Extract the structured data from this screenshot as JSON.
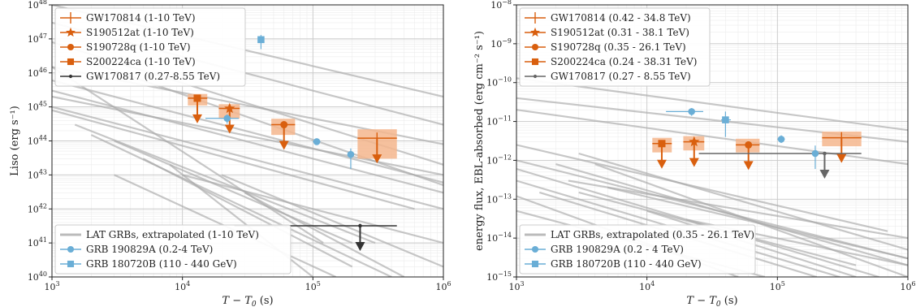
{
  "chart_data": [
    {
      "type": "scatter",
      "panel": "left",
      "xlabel": "T − T0 (s)",
      "xlabel_main": "T − T",
      "xlabel_sub": "0",
      "xlabel_unit": " (s)",
      "ylabel": "Liso (erg s⁻¹)",
      "xlim": [
        1000,
        1000000
      ],
      "ylim": [
        1e+40,
        1e+48
      ],
      "xscale": "log",
      "yscale": "log",
      "grid": true,
      "xticks": [
        {
          "v": 1000,
          "b": "10",
          "e": "3"
        },
        {
          "v": 10000,
          "b": "10",
          "e": "4"
        },
        {
          "v": 100000,
          "b": "10",
          "e": "5"
        },
        {
          "v": 1000000,
          "b": "10",
          "e": "6"
        }
      ],
      "yticks": [
        {
          "v": 1e+40,
          "b": "10",
          "e": "40"
        },
        {
          "v": 1e+41,
          "b": "10",
          "e": "41"
        },
        {
          "v": 1e+42,
          "b": "10",
          "e": "42"
        },
        {
          "v": 1e+43,
          "b": "10",
          "e": "43"
        },
        {
          "v": 1e+44,
          "b": "10",
          "e": "44"
        },
        {
          "v": 1e+45,
          "b": "10",
          "e": "45"
        },
        {
          "v": 1e+46,
          "b": "10",
          "e": "46"
        },
        {
          "v": 1e+47,
          "b": "10",
          "e": "47"
        },
        {
          "v": 1e+48,
          "b": "10",
          "e": "48"
        }
      ],
      "legend_top": [
        {
          "label": "GW170814 (1-10 TeV)",
          "marker": "vline",
          "color": "#d95f0e"
        },
        {
          "label": "S190512at (1-10 TeV)",
          "marker": "star",
          "color": "#d95f0e"
        },
        {
          "label": "S190728q (1-10 TeV)",
          "marker": "circle",
          "color": "#d95f0e"
        },
        {
          "label": "S200224ca (1-10 TeV)",
          "marker": "square",
          "color": "#d95f0e"
        },
        {
          "label": "GW170817 (0.27-8.55 TeV)",
          "marker": "dot",
          "color": "#333333"
        }
      ],
      "legend_bottom": [
        {
          "label": "LAT GRBs, extrapolated (1-10 TeV)",
          "marker": "band",
          "color": "#bbbbbb"
        },
        {
          "label": "GRB 190829A (0.2-4 TeV)",
          "marker": "circle",
          "color": "#6aaed6"
        },
        {
          "label": "GRB 180720B (110 - 440 GeV)",
          "marker": "square",
          "color": "#6aaed6"
        }
      ],
      "upper_limits": [
        {
          "name": "S200224ca",
          "marker": "square",
          "x": 13000,
          "x_lo": 11000,
          "x_hi": 15500,
          "y": 1.8e+45,
          "y_lo": 1.1e+45,
          "y_hi": 2.4e+45,
          "color": "#d95f0e"
        },
        {
          "name": "S190512at",
          "marker": "star",
          "x": 23000,
          "x_lo": 19000,
          "x_hi": 27500,
          "y": 9e+44,
          "y_lo": 4.5e+44,
          "y_hi": 1.2e+45,
          "color": "#d95f0e"
        },
        {
          "name": "S190728q",
          "marker": "circle",
          "x": 60000,
          "x_lo": 48000,
          "x_hi": 73000,
          "y": 3e+44,
          "y_lo": 1.5e+44,
          "y_hi": 4.5e+44,
          "color": "#d95f0e"
        },
        {
          "name": "GW170814",
          "marker": "vline",
          "x": 310000,
          "x_lo": 220000,
          "x_hi": 440000,
          "y": 1.2e+44,
          "y_lo": 3e+43,
          "y_hi": 2.2e+44,
          "color": "#d95f0e"
        },
        {
          "name": "GW170817",
          "marker": "dot",
          "x": 230000,
          "x_lo": 25000,
          "x_hi": 440000,
          "y": 3.2e+41,
          "color": "#333333"
        }
      ],
      "points": [
        {
          "name": "GRB 180720B",
          "marker": "square",
          "x": 40000,
          "xerr": 0.05,
          "y": 9.5e+46,
          "y_lo": 5e+46,
          "y_hi": 1.3e+47,
          "color": "#6aaed6"
        },
        {
          "name": "GRB 190829A",
          "marker": "circle",
          "x": 22000,
          "x_lo": 15000,
          "x_hi": 27000,
          "y": 4.6e+44,
          "y_lo": 3.2e+44,
          "y_hi": 6e+44,
          "color": "#6aaed6"
        },
        {
          "name": "GRB 190829A",
          "marker": "circle",
          "x": 107000,
          "x_lo": 100000,
          "x_hi": 114000,
          "y": 9.5e+43,
          "y_lo": 8e+43,
          "y_hi": 1.1e+44,
          "color": "#6aaed6"
        },
        {
          "name": "GRB 190829A",
          "marker": "circle",
          "x": 195000,
          "x_lo": 185000,
          "x_hi": 205000,
          "y": 4e+43,
          "y_lo": 1.5e+43,
          "y_hi": 6e+43,
          "color": "#6aaed6"
        }
      ],
      "lat_lines": [
        {
          "p": [
            [
              1000,
              1e+48
            ],
            [
              1000000,
              2e+45
            ]
          ]
        },
        {
          "p": [
            [
              1000,
              3e+47
            ],
            [
              1000000,
              3e+44
            ]
          ]
        },
        {
          "p": [
            [
              1000,
              8e+46
            ],
            [
              1000000,
              2e+43
            ]
          ]
        },
        {
          "p": [
            [
              1000,
              1.5e+46
            ],
            [
              1000000,
              8e+43
            ]
          ]
        },
        {
          "p": [
            [
              1000,
              6e+45
            ],
            [
              1000000,
              6e+42
            ]
          ]
        },
        {
          "p": [
            [
              1000,
              3e+45
            ],
            [
              1000000,
              3e+42
            ]
          ]
        },
        {
          "p": [
            [
              1000,
              2e+45
            ],
            [
              1000000,
              1e+43
            ]
          ]
        },
        {
          "p": [
            [
              1000,
              1e+45
            ],
            [
              1000000,
              1e+42
            ]
          ]
        },
        {
          "p": [
            [
              1000,
              8e+44
            ],
            [
              600000,
              1e+42
            ]
          ]
        },
        {
          "p": [
            [
              1500,
              3e+44
            ],
            [
              300000,
              1e+41
            ]
          ]
        },
        {
          "p": [
            [
              2000,
              1.5e+44
            ],
            [
              400000,
              1e+40
            ]
          ]
        },
        {
          "p": [
            [
              3000,
              1e+44
            ],
            [
              200000,
              1e+41
            ]
          ]
        },
        {
          "p": [
            [
              5000,
              3e+43
            ],
            [
              200000,
              2e+40
            ]
          ]
        },
        {
          "p": [
            [
              8000,
              2e+43
            ],
            [
              100000,
              1e+40
            ]
          ]
        },
        {
          "p": [
            [
              3000,
              1e+43
            ],
            [
              150000,
              1e+40
            ]
          ]
        },
        {
          "p": [
            [
              10000,
              1e+43
            ],
            [
              1000000,
              1e+41
            ]
          ]
        },
        {
          "p": [
            [
              20000,
              1e+43
            ],
            [
              1000000,
              2e+40
            ]
          ]
        },
        {
          "p": [
            [
              30000,
              3e+42
            ],
            [
              500000,
              1e+40
            ]
          ]
        },
        {
          "p": [
            [
              1000,
              1.5e+46
            ],
            [
              120000,
              1e+41
            ]
          ]
        },
        {
          "p": [
            [
              2000,
              2e+46
            ],
            [
              1000000,
              5e+42
            ]
          ]
        }
      ]
    },
    {
      "type": "scatter",
      "panel": "right",
      "xlabel": "T − T0 (s)",
      "xlabel_main": "T − T",
      "xlabel_sub": "0",
      "xlabel_unit": " (s)",
      "ylabel": "energy flux, EBL-absorbed (erg cm⁻² s⁻¹)",
      "xlim": [
        1000,
        1000000
      ],
      "ylim": [
        1e-15,
        1e-08
      ],
      "xscale": "log",
      "yscale": "log",
      "grid": true,
      "xticks": [
        {
          "v": 1000,
          "b": "10",
          "e": "3"
        },
        {
          "v": 10000,
          "b": "10",
          "e": "4"
        },
        {
          "v": 100000,
          "b": "10",
          "e": "5"
        },
        {
          "v": 1000000,
          "b": "10",
          "e": "6"
        }
      ],
      "yticks": [
        {
          "v": 1e-15,
          "b": "10",
          "e": "−15"
        },
        {
          "v": 1e-14,
          "b": "10",
          "e": "−14"
        },
        {
          "v": 1e-13,
          "b": "10",
          "e": "−13"
        },
        {
          "v": 1e-12,
          "b": "10",
          "e": "−12"
        },
        {
          "v": 1e-11,
          "b": "10",
          "e": "−11"
        },
        {
          "v": 1e-10,
          "b": "10",
          "e": "−10"
        },
        {
          "v": 1e-09,
          "b": "10",
          "e": "−9"
        },
        {
          "v": 1e-08,
          "b": "10",
          "e": "−8"
        }
      ],
      "legend_top": [
        {
          "label": "GW170814 (0.42 - 34.8 TeV)",
          "marker": "vline",
          "color": "#d95f0e"
        },
        {
          "label": "S190512at (0.31 - 38.1 TeV)",
          "marker": "star",
          "color": "#d95f0e"
        },
        {
          "label": "S190728q (0.35 - 26.1 TeV)",
          "marker": "circle",
          "color": "#d95f0e"
        },
        {
          "label": "S200224ca (0.24 - 38.31 TeV)",
          "marker": "square",
          "color": "#d95f0e"
        },
        {
          "label": "GW170817 (0.27 - 8.55 TeV)",
          "marker": "dot",
          "color": "#666666"
        }
      ],
      "legend_bottom": [
        {
          "label": "LAT GRBs, extrapolated (0.35 - 26.1 TeV)",
          "marker": "band",
          "color": "#bbbbbb"
        },
        {
          "label": "GRB 190829A (0.2 - 4 TeV)",
          "marker": "circle",
          "color": "#6aaed6"
        },
        {
          "label": "GRB 180720B (110 - 440 GeV)",
          "marker": "square",
          "color": "#6aaed6"
        }
      ],
      "upper_limits": [
        {
          "name": "S200224ca",
          "marker": "square",
          "x": 13000,
          "x_lo": 11000,
          "x_hi": 15500,
          "y": 2.7e-12,
          "y_lo": 1.6e-12,
          "y_hi": 3.8e-12,
          "color": "#d95f0e"
        },
        {
          "name": "S190512at",
          "marker": "star",
          "x": 23000,
          "x_lo": 19000,
          "x_hi": 27500,
          "y": 3e-12,
          "y_lo": 1.8e-12,
          "y_hi": 4.2e-12,
          "color": "#d95f0e"
        },
        {
          "name": "S190728q",
          "marker": "circle",
          "x": 60000,
          "x_lo": 48000,
          "x_hi": 73000,
          "y": 2.5e-12,
          "y_lo": 1.6e-12,
          "y_hi": 3.6e-12,
          "color": "#d95f0e"
        },
        {
          "name": "GW170814",
          "marker": "vline",
          "x": 310000,
          "x_lo": 220000,
          "x_hi": 440000,
          "y": 3.8e-12,
          "y_lo": 2.3e-12,
          "y_hi": 5.5e-12,
          "color": "#d95f0e"
        },
        {
          "name": "GW170817",
          "marker": "dot",
          "x": 230000,
          "x_lo": 25000,
          "x_hi": 440000,
          "y": 1.5e-12,
          "color": "#666666"
        }
      ],
      "points": [
        {
          "name": "GRB 190829A",
          "marker": "circle",
          "x": 22000,
          "x_lo": 14000,
          "x_hi": 27000,
          "y": 1.8e-11,
          "y_lo": 1.4e-11,
          "y_hi": 2.2e-11,
          "color": "#6aaed6"
        },
        {
          "name": "GRB 180720B",
          "marker": "square",
          "x": 40000,
          "x_lo": 37000,
          "x_hi": 44000,
          "y": 1.1e-11,
          "y_lo": 4e-12,
          "y_hi": 1.8e-11,
          "color": "#6aaed6"
        },
        {
          "name": "GRB 190829A",
          "marker": "circle",
          "x": 107000,
          "x_lo": 100000,
          "x_hi": 114000,
          "y": 3.5e-12,
          "y_lo": 2.8e-12,
          "y_hi": 4.4e-12,
          "color": "#6aaed6"
        },
        {
          "name": "GRB 190829A",
          "marker": "circle",
          "x": 195000,
          "x_lo": 185000,
          "x_hi": 205000,
          "y": 1.5e-12,
          "y_lo": 6e-13,
          "y_hi": 2.4e-12,
          "color": "#6aaed6"
        }
      ],
      "lat_lines": [
        {
          "p": [
            [
              1000,
              4e-11
            ],
            [
              1000000,
              3e-12
            ]
          ]
        },
        {
          "p": [
            [
              1000,
              1.3e-10
            ],
            [
              1000000,
              6e-12
            ]
          ]
        },
        {
          "p": [
            [
              1000,
              2e-11
            ],
            [
              1000000,
              8e-13
            ]
          ]
        },
        {
          "p": [
            [
              1000,
              1e-12
            ],
            [
              1000000,
              3e-15
            ]
          ]
        },
        {
          "p": [
            [
              1000,
              6e-13
            ],
            [
              600000,
              1e-15
            ]
          ]
        },
        {
          "p": [
            [
              1000,
              3e-13
            ],
            [
              300000,
              1e-15
            ]
          ]
        },
        {
          "p": [
            [
              1500,
              1.5e-13
            ],
            [
              200000,
              1e-15
            ]
          ]
        },
        {
          "p": [
            [
              2000,
              8e-13
            ],
            [
              1000000,
              2e-15
            ]
          ]
        },
        {
          "p": [
            [
              3000,
              1.5e-12
            ],
            [
              1000000,
              5e-15
            ]
          ]
        },
        {
          "p": [
            [
              1000,
              5e-14
            ],
            [
              80000,
              1e-15
            ]
          ]
        },
        {
          "p": [
            [
              2500,
              3e-13
            ],
            [
              1000000,
              1e-14
            ]
          ]
        },
        {
          "p": [
            [
              5000,
              2e-13
            ],
            [
              1000000,
              3e-15
            ]
          ]
        },
        {
          "p": [
            [
              10000,
              5e-14
            ],
            [
              400000,
              1e-15
            ]
          ]
        },
        {
          "p": [
            [
              20000,
              3e-14
            ],
            [
              1000000,
              2e-15
            ]
          ]
        },
        {
          "p": [
            [
              1000,
              2.5e-12
            ],
            [
              700000,
              1.5e-14
            ]
          ]
        },
        {
          "p": [
            [
              3000,
              1.5e-13
            ],
            [
              400000,
              2e-15
            ]
          ]
        },
        {
          "p": [
            [
              1000,
              1.2e-13
            ],
            [
              50000,
              1e-15
            ]
          ]
        },
        {
          "p": [
            [
              4000,
              8e-13
            ],
            [
              1000000,
              1e-15
            ]
          ]
        }
      ]
    }
  ]
}
